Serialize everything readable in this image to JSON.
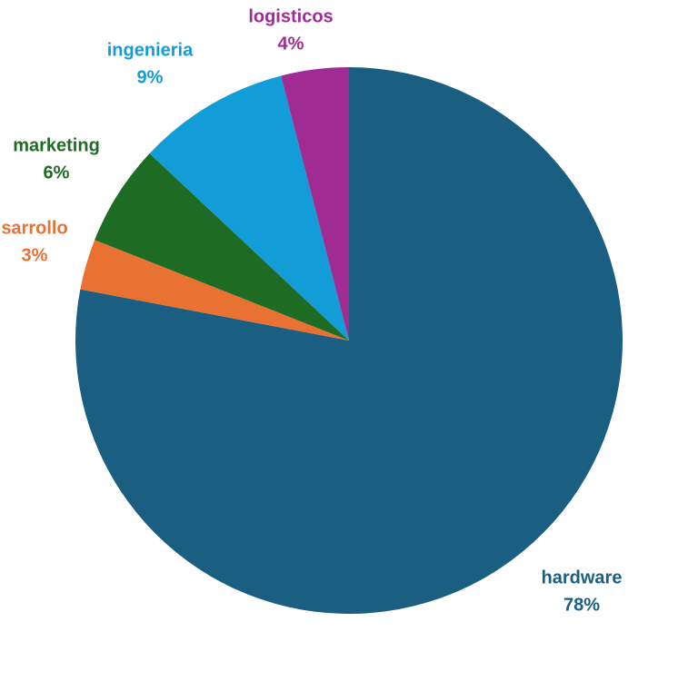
{
  "chart_data": {
    "type": "pie",
    "categories": [
      "hardware",
      "sarrollo",
      "marketing",
      "ingenieria",
      "logisticos"
    ],
    "values": [
      78,
      3,
      6,
      9,
      4
    ],
    "value_labels": [
      "78%",
      "3%",
      "6%",
      "9%",
      "4%"
    ],
    "colors": [
      "#1a5e82",
      "#e97132",
      "#1e6b24",
      "#139dd8",
      "#a02b93"
    ]
  }
}
